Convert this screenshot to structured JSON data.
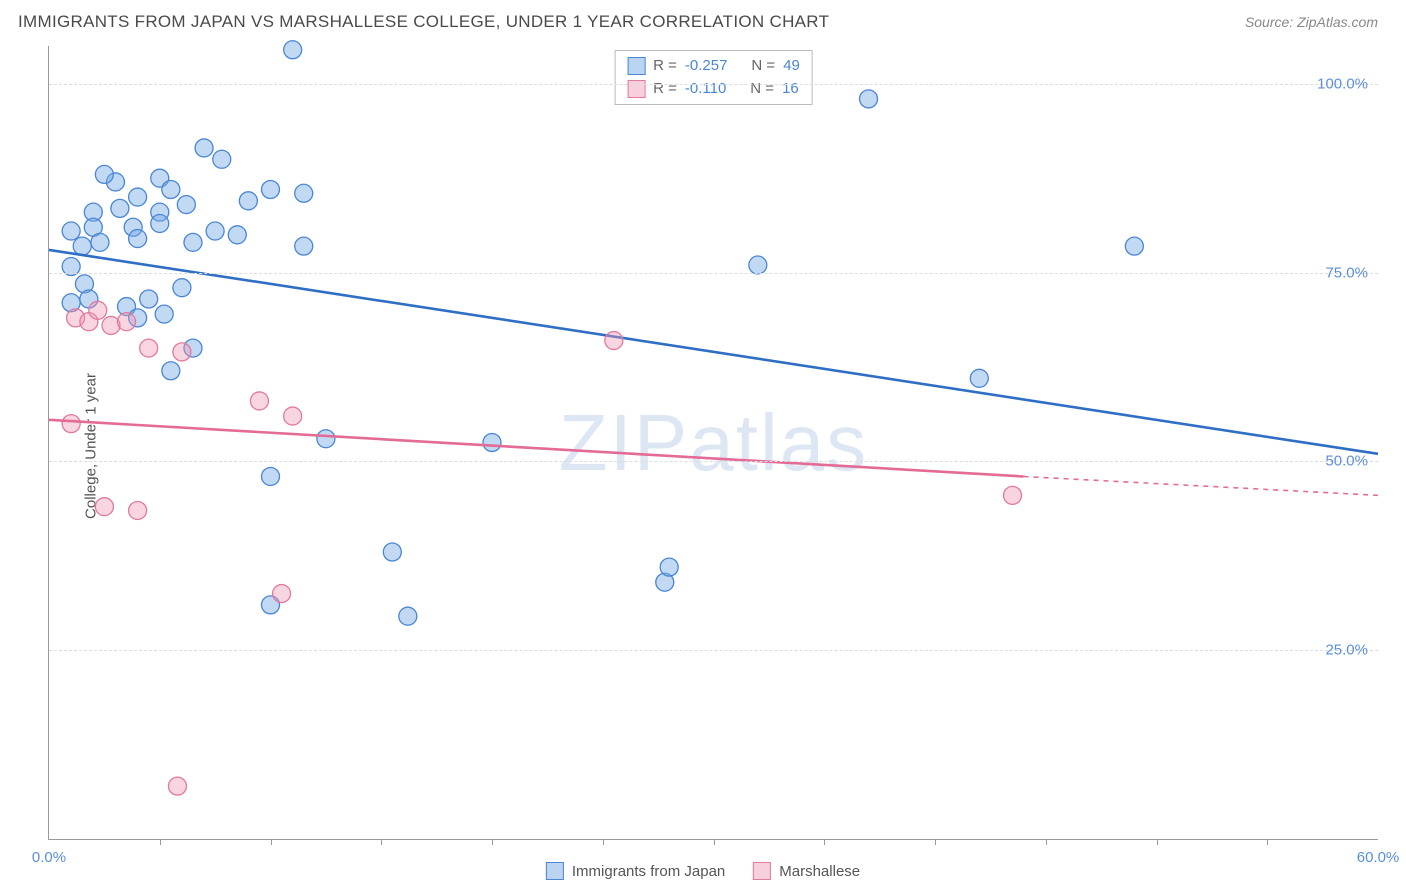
{
  "header": {
    "title": "IMMIGRANTS FROM JAPAN VS MARSHALLESE COLLEGE, UNDER 1 YEAR CORRELATION CHART",
    "source": "Source: ZipAtlas.com"
  },
  "axes": {
    "y_label": "College, Under 1 year",
    "y_ticks": [
      {
        "value": 25,
        "label": "25.0%"
      },
      {
        "value": 50,
        "label": "50.0%"
      },
      {
        "value": 75,
        "label": "75.0%"
      },
      {
        "value": 100,
        "label": "100.0%"
      }
    ],
    "x_ticks_minor": [
      5,
      10,
      15,
      20,
      25,
      30,
      35,
      40,
      45,
      50,
      55
    ],
    "x_labels": [
      {
        "value": 0,
        "label": "0.0%"
      },
      {
        "value": 60,
        "label": "60.0%"
      }
    ],
    "xlim": [
      0,
      60
    ],
    "ylim": [
      0,
      105
    ]
  },
  "watermark": "ZIPatlas",
  "stats": {
    "blue": {
      "r_label": "R =",
      "r": "-0.257",
      "n_label": "N =",
      "n": "49"
    },
    "pink": {
      "r_label": "R =",
      "r": "-0.110",
      "n_label": "N =",
      "n": "16"
    }
  },
  "legend_footer": {
    "blue": "Immigrants from Japan",
    "pink": "Marshallese"
  },
  "colors": {
    "blue_fill": "rgba(120,170,230,0.45)",
    "blue_stroke": "#4a86d4",
    "pink_fill": "rgba(240,150,180,0.40)",
    "pink_stroke": "#e17a9c",
    "blue_line": "#2e6fc5",
    "pink_line": "#e36b95",
    "grid": "#dddddd",
    "axis": "#999999",
    "tick_text": "#5b8fd9"
  },
  "marker_radius": 9,
  "chart": {
    "type": "scatter",
    "series": [
      {
        "name": "Immigrants from Japan",
        "color_key": "blue",
        "points": [
          [
            11.0,
            104.5
          ],
          [
            7.0,
            91.5
          ],
          [
            7.8,
            90.0
          ],
          [
            10.0,
            86.0
          ],
          [
            11.5,
            85.5
          ],
          [
            3.0,
            87.0
          ],
          [
            2.5,
            88.0
          ],
          [
            5.0,
            87.5
          ],
          [
            5.5,
            86.0
          ],
          [
            4.0,
            85.0
          ],
          [
            2.0,
            83.0
          ],
          [
            3.2,
            83.5
          ],
          [
            5.0,
            83.0
          ],
          [
            6.2,
            84.0
          ],
          [
            5.0,
            81.5
          ],
          [
            3.8,
            81.0
          ],
          [
            2.0,
            81.0
          ],
          [
            1.0,
            80.5
          ],
          [
            1.5,
            78.5
          ],
          [
            2.3,
            79.0
          ],
          [
            4.0,
            79.5
          ],
          [
            6.5,
            79.0
          ],
          [
            7.5,
            80.5
          ],
          [
            8.5,
            80.0
          ],
          [
            9.0,
            84.5
          ],
          [
            1.0,
            75.8
          ],
          [
            1.6,
            73.5
          ],
          [
            1.0,
            71.0
          ],
          [
            1.8,
            71.5
          ],
          [
            3.5,
            70.5
          ],
          [
            4.5,
            71.5
          ],
          [
            5.2,
            69.5
          ],
          [
            6.0,
            73.0
          ],
          [
            11.5,
            78.5
          ],
          [
            37.0,
            98.0
          ],
          [
            32.0,
            76.0
          ],
          [
            49.0,
            78.5
          ],
          [
            42.0,
            61.0
          ],
          [
            12.5,
            53.0
          ],
          [
            20.0,
            52.5
          ],
          [
            10.0,
            48.0
          ],
          [
            15.5,
            38.0
          ],
          [
            16.2,
            29.5
          ],
          [
            27.8,
            34.0
          ],
          [
            28.0,
            36.0
          ],
          [
            10.0,
            31.0
          ],
          [
            5.5,
            62.0
          ],
          [
            6.5,
            65.0
          ],
          [
            4.0,
            69.0
          ]
        ],
        "trend": {
          "type": "line",
          "x1": 0,
          "y1": 78.0,
          "x2": 60,
          "y2": 51.0
        }
      },
      {
        "name": "Marshallese",
        "color_key": "pink",
        "points": [
          [
            1.2,
            69.0
          ],
          [
            1.8,
            68.5
          ],
          [
            2.2,
            70.0
          ],
          [
            2.8,
            68.0
          ],
          [
            3.5,
            68.5
          ],
          [
            6.0,
            64.5
          ],
          [
            4.5,
            65.0
          ],
          [
            9.5,
            58.0
          ],
          [
            11.0,
            56.0
          ],
          [
            1.0,
            55.0
          ],
          [
            2.5,
            44.0
          ],
          [
            4.0,
            43.5
          ],
          [
            10.5,
            32.5
          ],
          [
            5.8,
            7.0
          ],
          [
            25.5,
            66.0
          ],
          [
            43.5,
            45.5
          ]
        ],
        "trend": {
          "type": "line",
          "x1": 0,
          "y1": 55.5,
          "x2": 44,
          "y2": 48.0,
          "dash_x1": 44,
          "dash_y1": 48.0,
          "dash_x2": 60,
          "dash_y2": 45.5
        }
      }
    ]
  }
}
